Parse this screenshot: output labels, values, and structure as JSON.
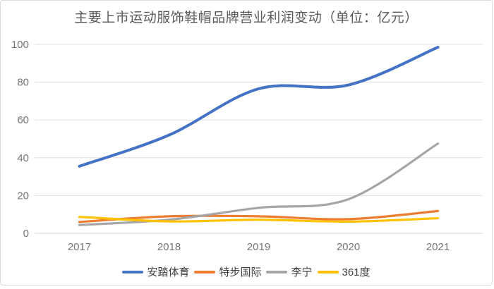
{
  "card": {
    "background": "#ffffff",
    "border_color": "#d9d9d9"
  },
  "chart_data": {
    "type": "line",
    "title": "主要上市运动服饰鞋帽品牌营业利润变动（单位：亿元）",
    "unit": "亿元",
    "categories": [
      "2017",
      "2018",
      "2019",
      "2020",
      "2021"
    ],
    "series": [
      {
        "name": "安踏体育",
        "color": "#4472C4",
        "values": [
          35.5,
          52,
          76.5,
          78.5,
          98.5
        ]
      },
      {
        "name": "特步国际",
        "color": "#ED7D31",
        "values": [
          6,
          9,
          9,
          7.5,
          11.8
        ]
      },
      {
        "name": "李宁",
        "color": "#A5A5A5",
        "values": [
          4.4,
          7.2,
          13.5,
          18,
          47.5
        ]
      },
      {
        "name": "361度",
        "color": "#FFC000",
        "values": [
          8.7,
          6.3,
          7.2,
          6.2,
          8
        ]
      }
    ],
    "xlabel": "",
    "ylabel": "",
    "ylim": [
      0,
      100
    ],
    "y_ticks": [
      0,
      20,
      40,
      60,
      80,
      100
    ],
    "grid": true,
    "smooth": true,
    "legend_position": "bottom",
    "styles": {
      "gridline_color": "#e0e0e0",
      "axis_line_color": "#d6d6d6",
      "tick_label_color": "#767676",
      "title_color": "#595959",
      "legend_text_color": "#404040"
    }
  }
}
